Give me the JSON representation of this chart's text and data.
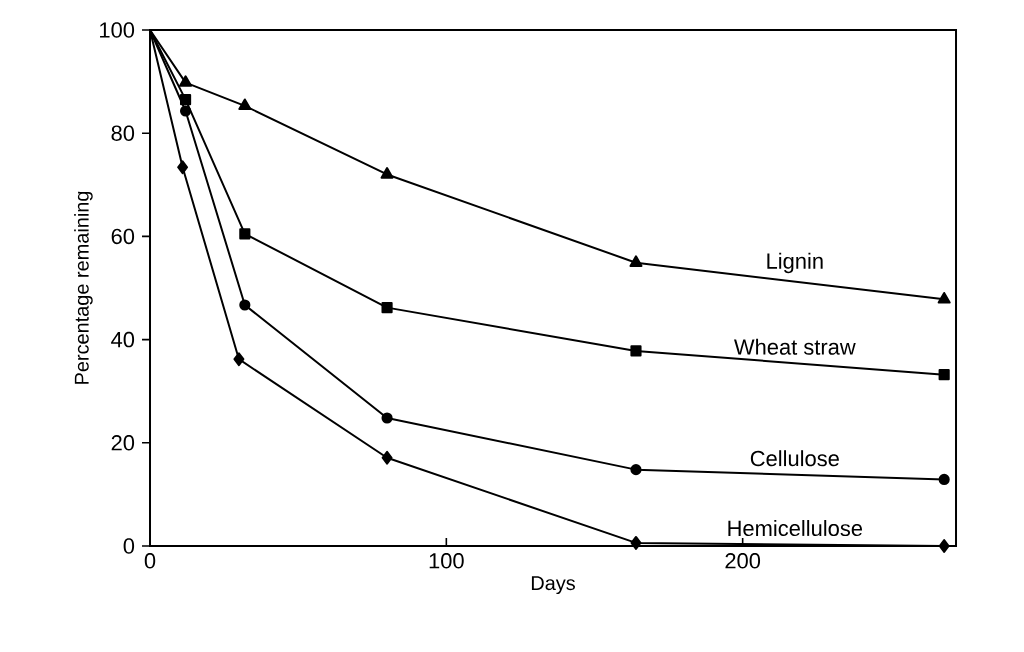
{
  "chart_data": {
    "type": "line",
    "xlabel": "Days",
    "ylabel": "Percentage remaining",
    "xlim": [
      0,
      272
    ],
    "ylim": [
      0,
      100
    ],
    "xticks": [
      0,
      100,
      200
    ],
    "yticks": [
      0,
      20,
      40,
      60,
      80,
      100
    ],
    "grid": false,
    "legend": false,
    "series": [
      {
        "name": "Lignin",
        "color": "#000000",
        "marker": "triangle",
        "x": [
          0,
          12,
          32,
          80,
          164,
          268
        ],
        "values": [
          100,
          89.8,
          85.3,
          72,
          54.9,
          47.8
        ]
      },
      {
        "name": "Wheat straw",
        "color": "#000000",
        "marker": "square",
        "x": [
          0,
          12,
          32,
          80,
          164,
          268
        ],
        "values": [
          100,
          86.5,
          60.5,
          46.2,
          37.8,
          33.2
        ]
      },
      {
        "name": "Cellulose",
        "color": "#000000",
        "marker": "circle",
        "x": [
          0,
          12,
          32,
          80,
          164,
          268
        ],
        "values": [
          100,
          84.3,
          46.7,
          24.8,
          14.8,
          12.9
        ]
      },
      {
        "name": "Hemicellulose",
        "color": "#000000",
        "marker": "diamond",
        "x": [
          0,
          11,
          30,
          80,
          164,
          268
        ],
        "values": [
          100,
          73.4,
          36.2,
          17.1,
          0.6,
          0
        ]
      }
    ]
  }
}
